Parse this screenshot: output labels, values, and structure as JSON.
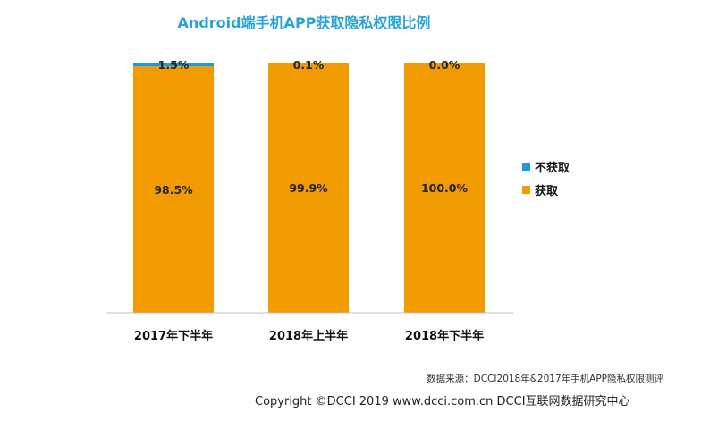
{
  "colors": {
    "title": "#29a3dc",
    "not_obtained": "#1a9ad6",
    "obtained": "#f29b00"
  },
  "chart_data": {
    "type": "bar",
    "stacked": true,
    "percent": true,
    "title": "Android端手机APP获取隐私权限比例",
    "categories": [
      "2017年下半年",
      "2018年上半年",
      "2018年下半年"
    ],
    "series": [
      {
        "name": "不获取",
        "color": "#1a9ad6",
        "values": [
          1.5,
          0.1,
          0.0
        ],
        "labels": [
          "1.5%",
          "0.1%",
          "0.0%"
        ]
      },
      {
        "name": "获取",
        "color": "#f29b00",
        "values": [
          98.5,
          99.9,
          100.0
        ],
        "labels": [
          "98.5%",
          "99.9%",
          "100.0%"
        ]
      }
    ],
    "ylim": [
      0,
      100
    ],
    "legend_position": "right",
    "grid": false
  },
  "footer": {
    "source": "数据来源：DCCI2018年&2017年手机APP隐私权限测评",
    "copyright": "Copyright ©DCCI 2019  www.dcci.com.cn   DCCI互联网数据研究中心"
  }
}
